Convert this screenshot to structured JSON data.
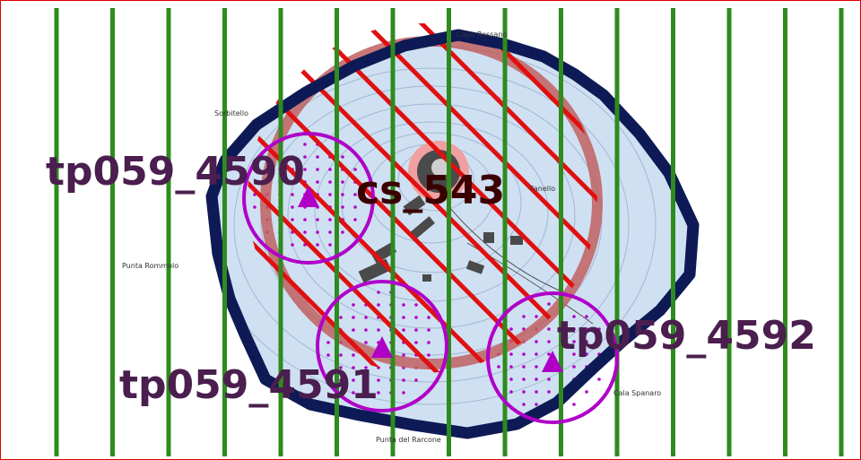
{
  "map": {
    "colors": {
      "frame_border": "#e00000",
      "island_fill": "#cfe0f2",
      "island_outline": "#0d1a55",
      "stripe_green": "#2e8b1e",
      "hatch_red": "#e01010",
      "buffer_ring": "#c06060",
      "target_purple": "#b000c8",
      "label_purple": "#4a1e4e",
      "cs_label": "#3a0000",
      "building_gray": "#4a4a4a",
      "crater_pink": "#f0a0a0"
    },
    "labels": {
      "tp1": "tp059_4590",
      "tp2": "tp059_4591",
      "tp3": "tp059_4592",
      "cs": "cs_543"
    },
    "place_names": {
      "north": "Capo Rossano",
      "northwest": "Sorbitello",
      "west": "Punta Rommolo",
      "south": "Punta del Rarcone",
      "southeast": "Cala Spanaro",
      "center_right": "Fanello"
    },
    "markers": [
      {
        "id": "tp059_4590",
        "icon": "triangle-marker-icon"
      },
      {
        "id": "tp059_4591",
        "icon": "triangle-marker-icon"
      },
      {
        "id": "tp059_4592",
        "icon": "triangle-marker-icon"
      }
    ]
  }
}
